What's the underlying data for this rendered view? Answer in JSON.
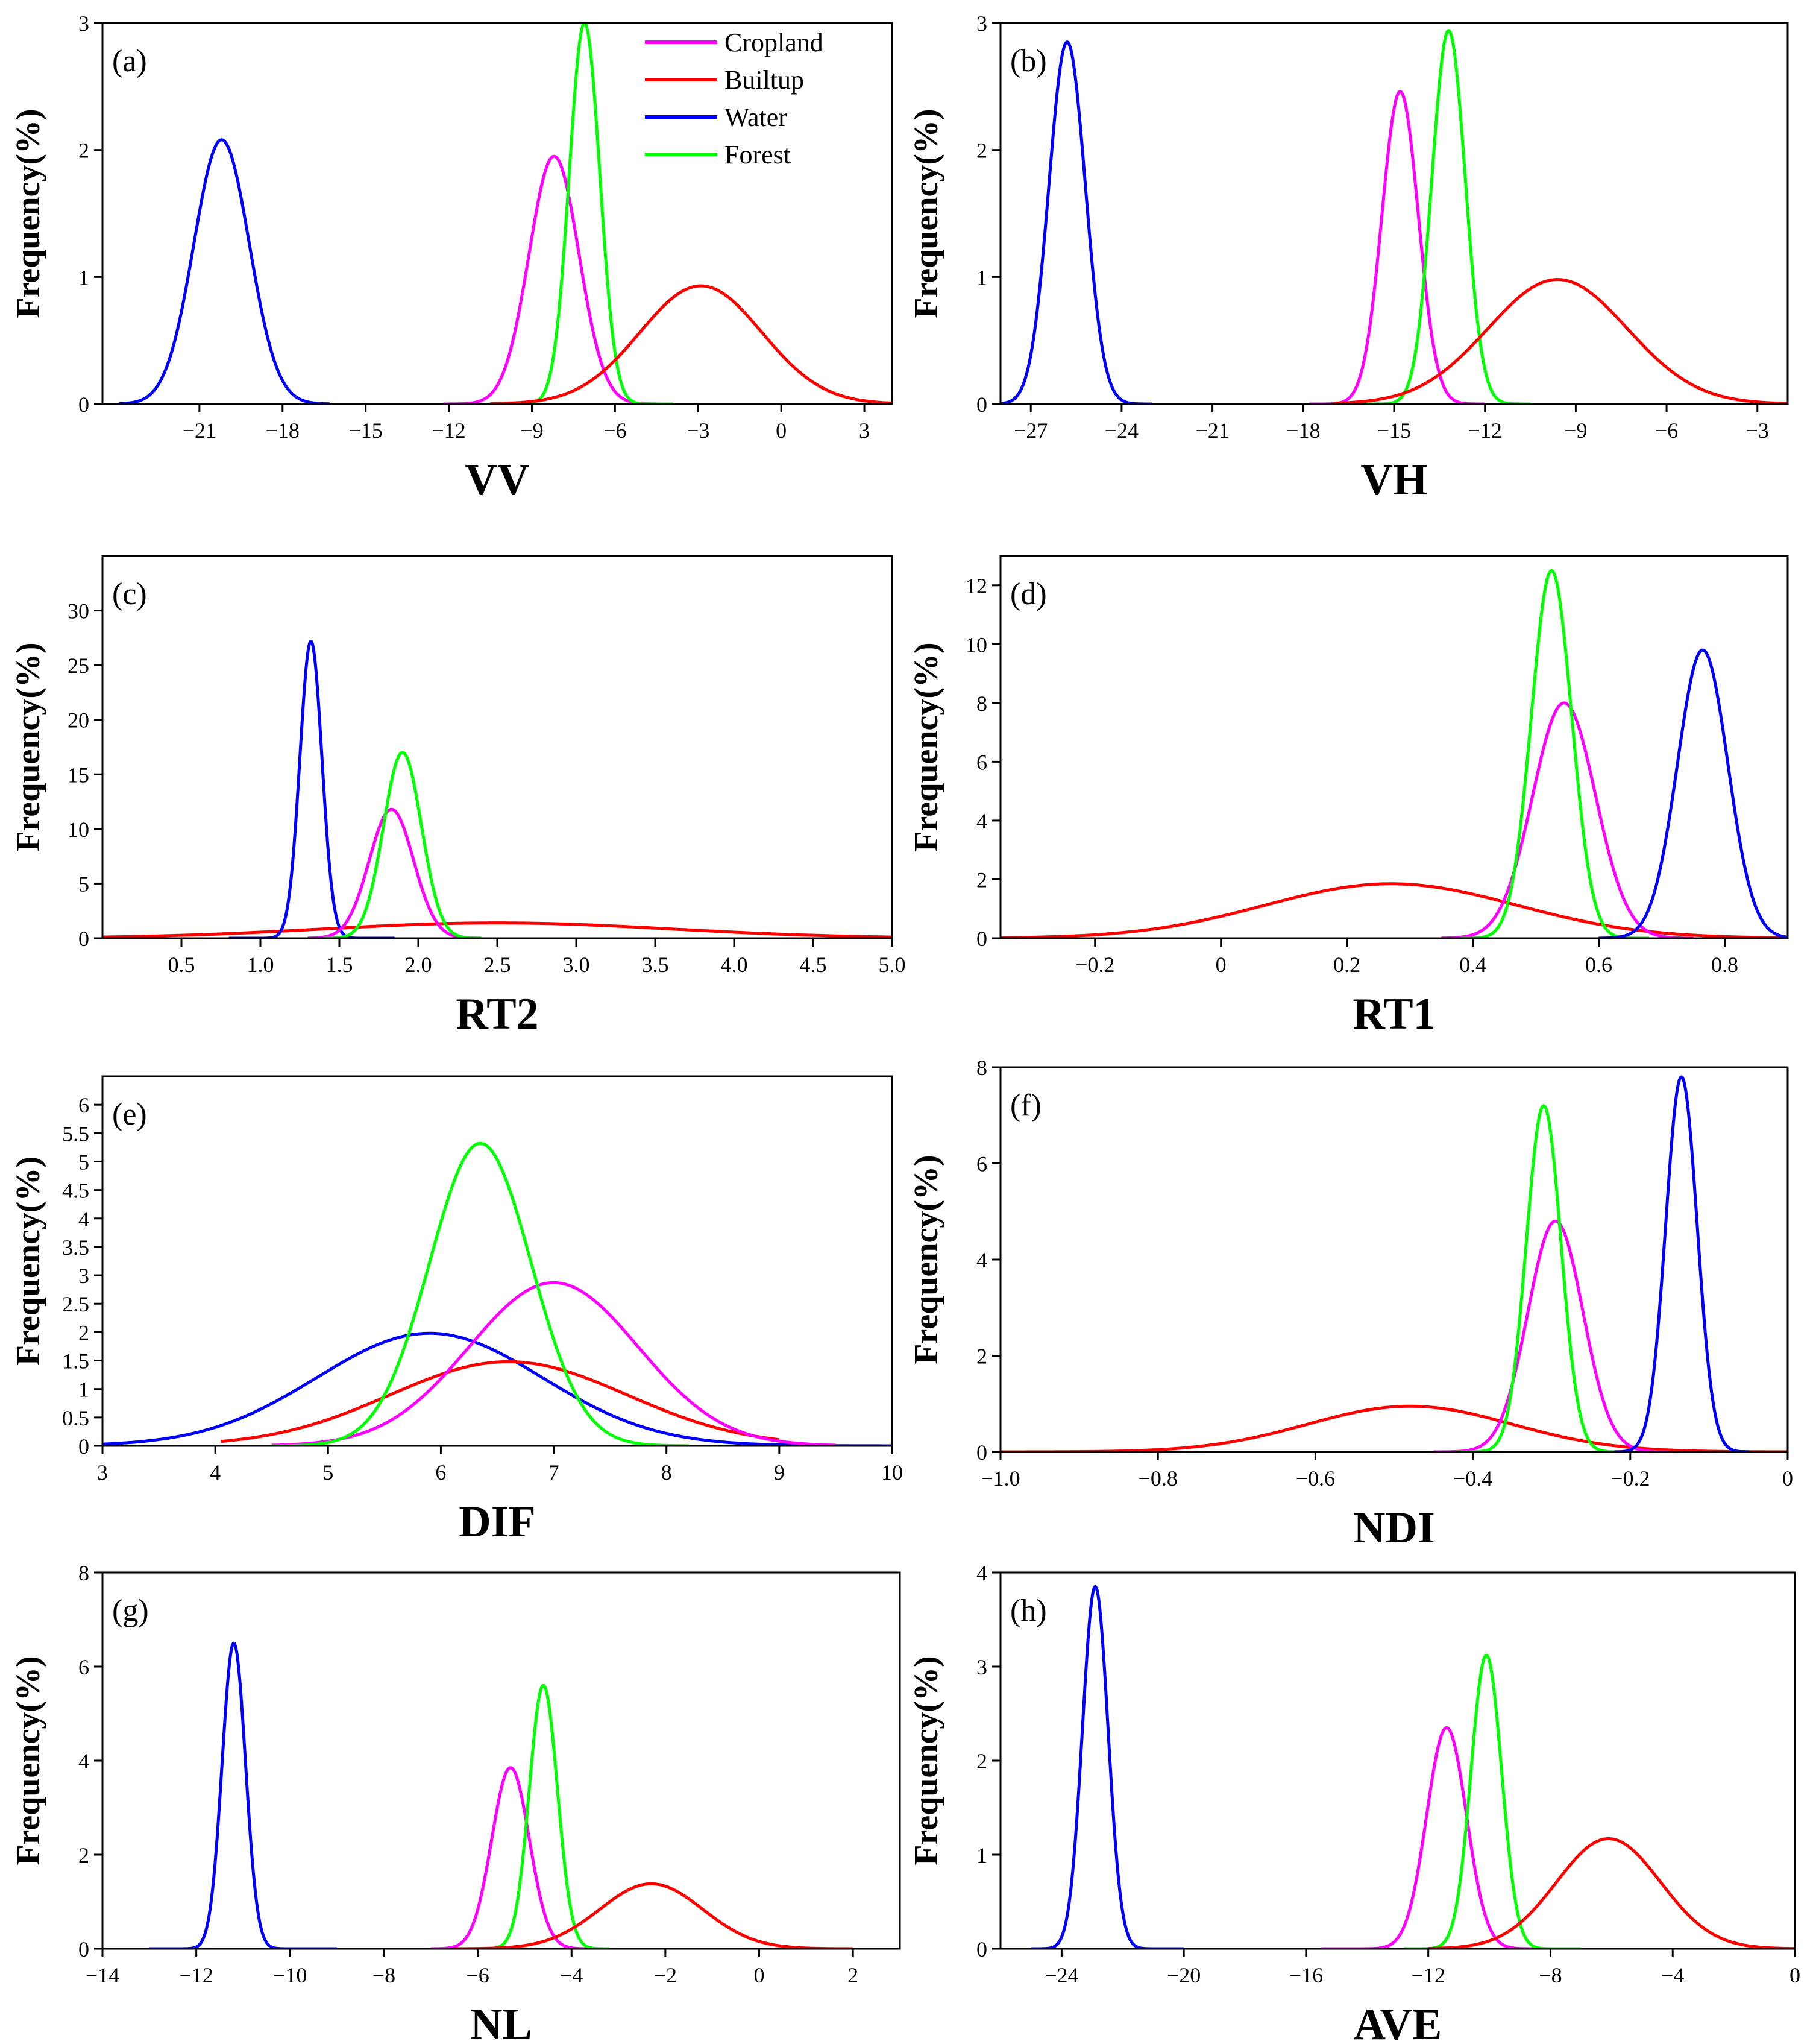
{
  "colors": {
    "Cropland": "#ff00ff",
    "Builtup": "#ff0000",
    "Water": "#0000ff",
    "Forest": "#00ff00"
  },
  "legend": [
    "Cropland",
    "Builtup",
    "Water",
    "Forest"
  ],
  "chart_data": [
    {
      "type": "line",
      "tag": "(a)",
      "xlabel": "VV",
      "ylabel": "Frequency(%)",
      "xlim": [
        -24.5,
        4
      ],
      "ylim": [
        0,
        3
      ],
      "xticks": [
        -21,
        -18,
        -15,
        -12,
        -9,
        -6,
        -3,
        0,
        3
      ],
      "xtick_labels": [
        "−21",
        "−18",
        "−15",
        "−12",
        "−9",
        "−6",
        "−3",
        "0",
        "3"
      ],
      "yticks": [
        0,
        1,
        2,
        3
      ],
      "ytick_labels": [
        "0",
        "1",
        "2",
        "3"
      ],
      "series": [
        {
          "name": "Water",
          "mean": -20.2,
          "sd": 1.0,
          "peak": 2.08,
          "range": [
            -23.9,
            -16.3
          ]
        },
        {
          "name": "Cropland",
          "mean": -8.2,
          "sd": 0.9,
          "peak": 1.95,
          "range": [
            -12.2,
            -4.5
          ]
        },
        {
          "name": "Forest",
          "mean": -7.1,
          "sd": 0.55,
          "peak": 3.0,
          "range": [
            -10.5,
            -3.9
          ]
        },
        {
          "name": "Builtup",
          "mean": -2.9,
          "sd": 2.2,
          "peak": 0.93,
          "range": [
            -10.5,
            4.0
          ]
        }
      ]
    },
    {
      "type": "line",
      "tag": "(b)",
      "xlabel": "VH",
      "ylabel": "Frequency(%)",
      "xlim": [
        -28,
        -2
      ],
      "ylim": [
        0,
        3
      ],
      "xticks": [
        -27,
        -24,
        -21,
        -18,
        -15,
        -12,
        -9,
        -6,
        -3
      ],
      "xtick_labels": [
        "−27",
        "−24",
        "−21",
        "−18",
        "−15",
        "−12",
        "−9",
        "−6",
        "−3"
      ],
      "yticks": [
        0,
        1,
        2,
        3
      ],
      "ytick_labels": [
        "0",
        "1",
        "2",
        "3"
      ],
      "series": [
        {
          "name": "Water",
          "mean": -25.8,
          "sd": 0.6,
          "peak": 2.85,
          "range": [
            -28.0,
            -23.0
          ]
        },
        {
          "name": "Cropland",
          "mean": -14.8,
          "sd": 0.6,
          "peak": 2.46,
          "range": [
            -17.8,
            -12.0
          ]
        },
        {
          "name": "Forest",
          "mean": -13.2,
          "sd": 0.55,
          "peak": 2.94,
          "range": [
            -16.5,
            -10.5
          ]
        },
        {
          "name": "Builtup",
          "mean": -9.6,
          "sd": 2.3,
          "peak": 0.98,
          "range": [
            -17.0,
            -2.0
          ]
        }
      ]
    },
    {
      "type": "line",
      "tag": "(c)",
      "xlabel": "RT2",
      "ylabel": "Frequency(%)",
      "xlim": [
        0,
        5
      ],
      "ylim": [
        0,
        35
      ],
      "xticks": [
        0.5,
        1.0,
        1.5,
        2.0,
        2.5,
        3.0,
        3.5,
        4.0,
        4.5,
        5.0
      ],
      "xtick_labels": [
        "0.5",
        "1.0",
        "1.5",
        "2.0",
        "2.5",
        "3.0",
        "3.5",
        "4.0",
        "4.5",
        "5.0"
      ],
      "yticks": [
        0,
        5,
        10,
        15,
        20,
        25,
        30
      ],
      "ytick_labels": [
        "0",
        "5",
        "10",
        "15",
        "20",
        "25",
        "30"
      ],
      "series": [
        {
          "name": "Builtup",
          "mean": 2.5,
          "sd": 1.1,
          "peak": 1.4,
          "range": [
            0.0,
            5.0
          ]
        },
        {
          "name": "Water",
          "mean": 1.32,
          "sd": 0.07,
          "peak": 27.2,
          "range": [
            0.8,
            1.85
          ]
        },
        {
          "name": "Cropland",
          "mean": 1.83,
          "sd": 0.14,
          "peak": 11.8,
          "range": [
            1.3,
            2.4
          ]
        },
        {
          "name": "Forest",
          "mean": 1.9,
          "sd": 0.12,
          "peak": 17.0,
          "range": [
            1.4,
            2.4
          ]
        }
      ]
    },
    {
      "type": "line",
      "tag": "(d)",
      "xlabel": "RT1",
      "ylabel": "Frequency(%)",
      "xlim": [
        -0.35,
        0.9
      ],
      "ylim": [
        0,
        13
      ],
      "xticks": [
        -0.2,
        0,
        0.2,
        0.4,
        0.6,
        0.8
      ],
      "xtick_labels": [
        "−0.2",
        "0",
        "0.2",
        "0.4",
        "0.6",
        "0.8"
      ],
      "yticks": [
        0,
        2,
        4,
        6,
        8,
        10,
        12
      ],
      "ytick_labels": [
        "0",
        "2",
        "4",
        "6",
        "8",
        "10",
        "12"
      ],
      "series": [
        {
          "name": "Builtup",
          "mean": 0.27,
          "sd": 0.2,
          "peak": 1.85,
          "range": [
            -0.35,
            0.9
          ]
        },
        {
          "name": "Cropland",
          "mean": 0.545,
          "sd": 0.05,
          "peak": 8.0,
          "range": [
            0.35,
            0.75
          ]
        },
        {
          "name": "Forest",
          "mean": 0.525,
          "sd": 0.032,
          "peak": 12.5,
          "range": [
            0.38,
            0.68
          ]
        },
        {
          "name": "Water",
          "mean": 0.765,
          "sd": 0.04,
          "peak": 9.8,
          "range": [
            0.6,
            0.9
          ]
        }
      ]
    },
    {
      "type": "line",
      "tag": "(e)",
      "xlabel": "DIF",
      "ylabel": "Frequency(%)",
      "xlim": [
        3,
        10
      ],
      "ylim": [
        0,
        6.5
      ],
      "xticks": [
        3,
        4,
        5,
        6,
        7,
        8,
        9,
        10
      ],
      "xtick_labels": [
        "3",
        "4",
        "5",
        "6",
        "7",
        "8",
        "9",
        "10"
      ],
      "yticks": [
        0,
        0.5,
        1,
        1.5,
        2,
        2.5,
        3,
        3.5,
        4,
        4.5,
        5,
        5.5,
        6
      ],
      "ytick_labels": [
        "0",
        "0.5",
        "1",
        "1.5",
        "2",
        "2.5",
        "3",
        "3.5",
        "4",
        "4.5",
        "5",
        "5.5",
        "6"
      ],
      "series": [
        {
          "name": "Water",
          "mean": 5.9,
          "sd": 1.0,
          "peak": 1.98,
          "range": [
            3.0,
            10.0
          ]
        },
        {
          "name": "Builtup",
          "mean": 6.6,
          "sd": 1.05,
          "peak": 1.48,
          "range": [
            4.05,
            9.0
          ]
        },
        {
          "name": "Cropland",
          "mean": 7.0,
          "sd": 0.75,
          "peak": 2.87,
          "range": [
            4.5,
            9.5
          ]
        },
        {
          "name": "Forest",
          "mean": 6.35,
          "sd": 0.45,
          "peak": 5.32,
          "range": [
            4.5,
            8.2
          ]
        }
      ]
    },
    {
      "type": "line",
      "tag": "(f)",
      "xlabel": "NDI",
      "ylabel": "Frequency(%)",
      "xlim": [
        -1.0,
        0
      ],
      "ylim": [
        0,
        8
      ],
      "xticks": [
        -1.0,
        -0.8,
        -0.6,
        -0.4,
        -0.2,
        0
      ],
      "xtick_labels": [
        "−1.0",
        "−0.8",
        "−0.6",
        "−0.4",
        "−0.2",
        "0"
      ],
      "yticks": [
        0,
        2,
        4,
        6,
        8
      ],
      "ytick_labels": [
        "0",
        "2",
        "4",
        "6",
        "8"
      ],
      "series": [
        {
          "name": "Builtup",
          "mean": -0.48,
          "sd": 0.13,
          "peak": 0.95,
          "range": [
            -1.0,
            0
          ]
        },
        {
          "name": "Cropland",
          "mean": -0.295,
          "sd": 0.035,
          "peak": 4.8,
          "range": [
            -0.45,
            -0.15
          ]
        },
        {
          "name": "Forest",
          "mean": -0.31,
          "sd": 0.022,
          "peak": 7.2,
          "range": [
            -0.42,
            -0.2
          ]
        },
        {
          "name": "Water",
          "mean": -0.135,
          "sd": 0.02,
          "peak": 7.8,
          "range": [
            -0.22,
            -0.05
          ]
        }
      ]
    },
    {
      "type": "line",
      "tag": "(g)",
      "xlabel": "NL",
      "ylabel": "Frequency(%)",
      "xlim": [
        -14,
        3
      ],
      "ylim": [
        0,
        8
      ],
      "xticks": [
        -14,
        -12,
        -10,
        -8,
        -6,
        -4,
        -2,
        0,
        2
      ],
      "xtick_labels": [
        "−14",
        "−12",
        "−10",
        "−8",
        "−6",
        "−4",
        "−2",
        "0",
        "2"
      ],
      "yticks": [
        0,
        2,
        4,
        6,
        8
      ],
      "ytick_labels": [
        "0",
        "2",
        "4",
        "6",
        "8"
      ],
      "series": [
        {
          "name": "Water",
          "mean": -11.2,
          "sd": 0.25,
          "peak": 6.5,
          "range": [
            -13.0,
            -9.0
          ]
        },
        {
          "name": "Cropland",
          "mean": -5.3,
          "sd": 0.4,
          "peak": 3.85,
          "range": [
            -7.0,
            -3.5
          ]
        },
        {
          "name": "Forest",
          "mean": -4.6,
          "sd": 0.3,
          "peak": 5.6,
          "range": [
            -6.0,
            -3.2
          ]
        },
        {
          "name": "Builtup",
          "mean": -2.3,
          "sd": 1.1,
          "peak": 1.38,
          "range": [
            -6.5,
            2.0
          ]
        }
      ]
    },
    {
      "type": "line",
      "tag": "(h)",
      "xlabel": "AVE",
      "ylabel": "Frequency(%)",
      "xlim": [
        -26,
        0
      ],
      "ylim": [
        0,
        4
      ],
      "xticks": [
        -24,
        -20,
        -16,
        -12,
        -8,
        -4,
        0
      ],
      "xtick_labels": [
        "−24",
        "−20",
        "−16",
        "−12",
        "−8",
        "−4",
        "0"
      ],
      "yticks": [
        0,
        1,
        2,
        3,
        4
      ],
      "ytick_labels": [
        "0",
        "1",
        "2",
        "3",
        "4"
      ],
      "series": [
        {
          "name": "Water",
          "mean": -22.9,
          "sd": 0.42,
          "peak": 3.85,
          "range": [
            -25.0,
            -20.0
          ]
        },
        {
          "name": "Cropland",
          "mean": -11.4,
          "sd": 0.65,
          "peak": 2.35,
          "range": [
            -15.5,
            -8.0
          ]
        },
        {
          "name": "Forest",
          "mean": -10.1,
          "sd": 0.5,
          "peak": 3.12,
          "range": [
            -12.8,
            -7.0
          ]
        },
        {
          "name": "Builtup",
          "mean": -6.1,
          "sd": 1.7,
          "peak": 1.17,
          "range": [
            -12.0,
            0
          ]
        }
      ]
    }
  ]
}
